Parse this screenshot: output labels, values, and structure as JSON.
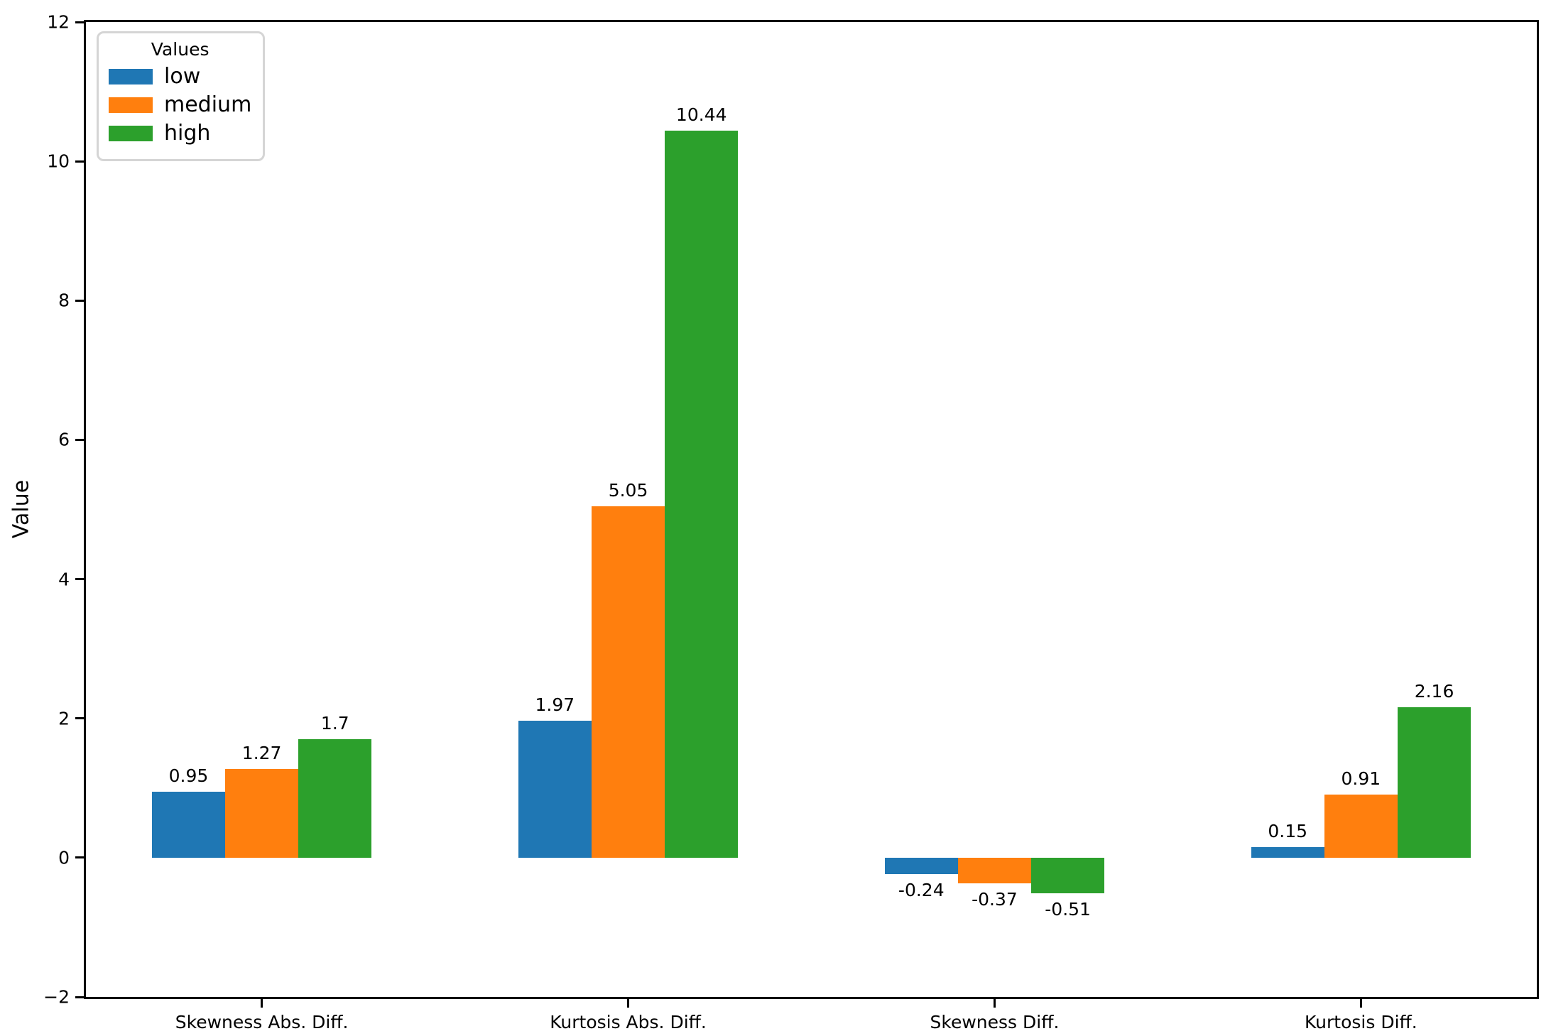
{
  "chart_data": {
    "type": "bar",
    "title": "",
    "xlabel": "",
    "ylabel": "Value",
    "categories": [
      "Skewness Abs. Diff.",
      "Kurtosis Abs. Diff.",
      "Skewness Diff.",
      "Kurtosis Diff."
    ],
    "series": [
      {
        "name": "low",
        "color": "#1f77b4",
        "values": [
          0.95,
          1.97,
          -0.24,
          0.15
        ],
        "labels": [
          "0.95",
          "1.97",
          "-0.24",
          "0.15"
        ]
      },
      {
        "name": "medium",
        "color": "#ff7f0e",
        "values": [
          1.27,
          5.05,
          -0.37,
          0.91
        ],
        "labels": [
          "1.27",
          "5.05",
          "-0.37",
          "0.91"
        ]
      },
      {
        "name": "high",
        "color": "#2ca02c",
        "values": [
          1.7,
          10.44,
          -0.51,
          2.16
        ],
        "labels": [
          "1.7",
          "10.44",
          "-0.51",
          "2.16"
        ]
      }
    ],
    "legend_title": "Values",
    "legend_position": "upper left",
    "ylim": [
      -2,
      12
    ],
    "yticks": [
      -2,
      0,
      2,
      4,
      6,
      8,
      10,
      12
    ],
    "ytick_labels": [
      "−2",
      "0",
      "2",
      "4",
      "6",
      "8",
      "10",
      "12"
    ],
    "xlim": [
      -0.48,
      3.48
    ],
    "bar_width_units": 0.2,
    "grid": false,
    "bar_labels": true,
    "spine_color": "#000000",
    "background_color": "#ffffff"
  }
}
